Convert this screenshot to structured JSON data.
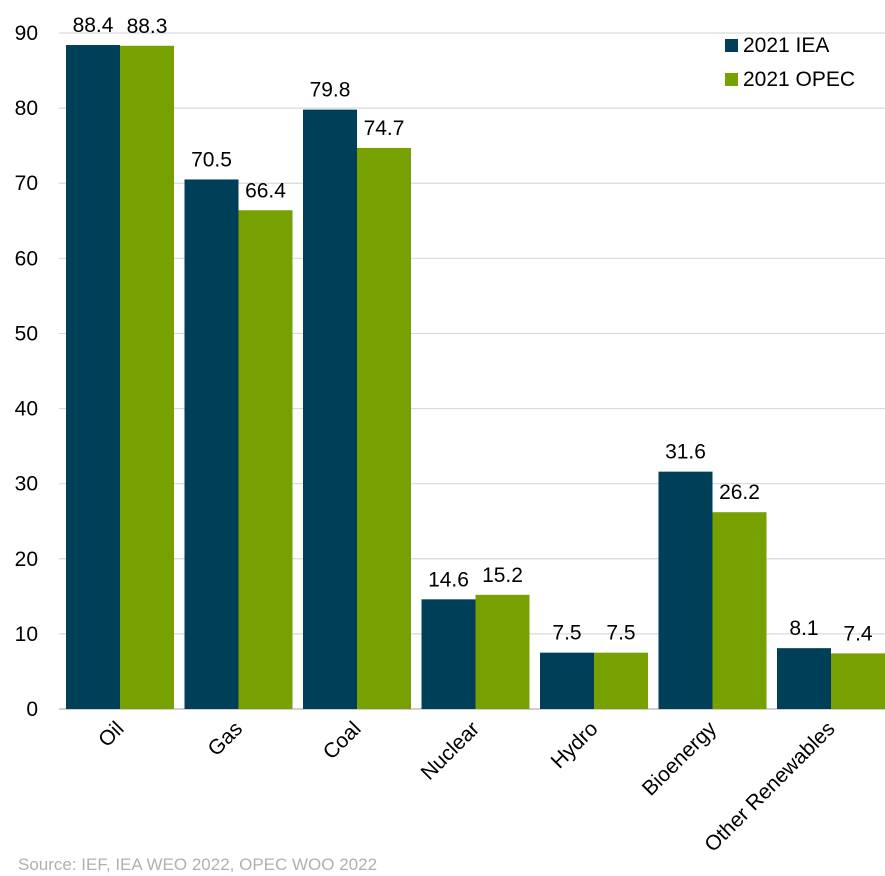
{
  "chart_data": {
    "type": "bar",
    "categories": [
      "Oil",
      "Gas",
      "Coal",
      "Nuclear",
      "Hydro",
      "Bioenergy",
      "Other Renewables"
    ],
    "series": [
      {
        "name": "2021 IEA",
        "color": "#003f58",
        "values": [
          88.4,
          70.5,
          79.8,
          14.6,
          7.5,
          31.6,
          8.1
        ],
        "labels": [
          "88.4",
          "70.5",
          "79.8",
          "14.6",
          "7.5",
          "31.6",
          "8.1"
        ]
      },
      {
        "name": "2021 OPEC",
        "color": "#76a100",
        "values": [
          88.3,
          66.4,
          74.7,
          15.2,
          7.5,
          26.2,
          7.4
        ],
        "labels": [
          "88.3",
          "66.4",
          "74.7",
          "15.2",
          "7.5",
          "26.2",
          "7.4"
        ]
      }
    ],
    "ylim": [
      0,
      90
    ],
    "yticks": [
      0,
      10,
      20,
      30,
      40,
      50,
      60,
      70,
      80,
      90
    ],
    "grid": true,
    "legend_position": "top-right"
  },
  "source": "Source: IEF, IEA WEO 2022, OPEC WOO 2022"
}
